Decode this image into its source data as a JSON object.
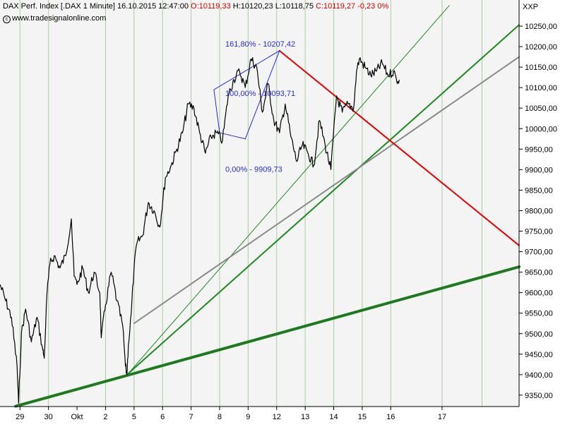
{
  "header": {
    "instrument": "DAX Perf. Index [.DAX",
    "interval": "1 Minute]",
    "datetime": "16.10.2015 12:47:00",
    "open": "O:10119,33",
    "high": "H:10120,23",
    "low": "L:10118,75",
    "close": "C:10119,27",
    "change": "-0,23",
    "change_pct": "0%",
    "source": "www.tradesignalonline.com",
    "symbol": "XXP"
  },
  "colors": {
    "background": "#f4f4f4",
    "grid": "#a9cfa0",
    "price": "#000000",
    "fib": "#2a2ad8",
    "red": "#e00000",
    "thick_green": "#1e7a1e",
    "green": "#1c8c1c",
    "gray": "#8a8a8a"
  },
  "chart_data": {
    "type": "line",
    "title": "DAX Perf. Index [.DAX 1 Minute]",
    "ylabel": "",
    "xlabel": "",
    "ylim": [
      9300,
      10300
    ],
    "grid": true,
    "y_ticks": [
      "10250,00",
      "10200,00",
      "10150,00",
      "10100,00",
      "10050,00",
      "10000,00",
      "9950,00",
      "9900,00",
      "9850,00",
      "9800,00",
      "9750,00",
      "9700,00",
      "9650,00",
      "9600,00",
      "9550,00",
      "9500,00",
      "9450,00",
      "9400,00",
      "9350,00"
    ],
    "y_tick_values": [
      10250,
      10200,
      10150,
      10100,
      10050,
      10000,
      9950,
      9900,
      9850,
      9800,
      9750,
      9700,
      9650,
      9600,
      9550,
      9500,
      9450,
      9400,
      9350
    ],
    "x_labels": [
      "29",
      "30",
      "Okt",
      "2",
      "5",
      "6",
      "7",
      "8",
      "9",
      "12",
      "13",
      "14",
      "15",
      "16",
      "17"
    ],
    "x_label_index": [
      1.4,
      3.4,
      5.4,
      7.4,
      9.4,
      11.4,
      13.4,
      15.4,
      17.4,
      19.4,
      21.4,
      23.4,
      25.4,
      27.4,
      31.0
    ],
    "x_grid_index": [
      1.4,
      3.4,
      7.4,
      9.4,
      11.4,
      13.4,
      15.4,
      17.4,
      19.4,
      21.4,
      23.4,
      25.4,
      27.4,
      31.0,
      33.8
    ],
    "x_range": [
      0,
      36.4
    ],
    "series": [
      {
        "name": "",
        "type": "price",
        "x": [
          0,
          0.4,
          0.8,
          1.2,
          1.3,
          1.5,
          1.8,
          2.2,
          2.6,
          3.0,
          3.1,
          3.3,
          3.5,
          3.8,
          4.2,
          4.6,
          5.0,
          5.2,
          5.4,
          5.8,
          6.2,
          6.6,
          7.0,
          7.1,
          7.4,
          7.8,
          8.2,
          8.6,
          8.8,
          8.9,
          9.0,
          9.2,
          9.4,
          9.6,
          10.0,
          10.4,
          10.8,
          11.2,
          11.6,
          12.0,
          12.4,
          12.8,
          13.2,
          13.6,
          14.0,
          14.4,
          14.8,
          15.2,
          15.6,
          16.0,
          16.4,
          16.8,
          17.2,
          17.6,
          18.0,
          18.4,
          18.8,
          19.2,
          19.6,
          20.0,
          20.4,
          20.8,
          21.2,
          21.6,
          22.0,
          22.4,
          22.8,
          23.2,
          23.6,
          24.0,
          24.4,
          24.8,
          25.0,
          25.2,
          25.6,
          26.0,
          26.4,
          26.8,
          27.2,
          27.6,
          27.8,
          28.0
        ],
        "values": [
          9620,
          9580,
          9540,
          9420,
          9330,
          9500,
          9560,
          9480,
          9540,
          9460,
          9440,
          9600,
          9670,
          9690,
          9660,
          9690,
          9780,
          9640,
          9620,
          9660,
          9600,
          9650,
          9600,
          9490,
          9570,
          9650,
          9580,
          9520,
          9420,
          9400,
          9470,
          9550,
          9660,
          9720,
          9740,
          9820,
          9800,
          9760,
          9880,
          9910,
          9950,
          9990,
          10060,
          10050,
          9990,
          9940,
          9980,
          9990,
          9970,
          10080,
          10120,
          10140,
          10100,
          10170,
          10150,
          10040,
          10110,
          10020,
          9990,
          10060,
          9980,
          9920,
          9960,
          9940,
          9910,
          10020,
          9960,
          9900,
          10080,
          10040,
          10060,
          10050,
          10140,
          10170,
          10150,
          10130,
          10140,
          10160,
          10130,
          10140,
          10120,
          10119
        ],
        "color": "#000000"
      }
    ],
    "annotations": [
      {
        "label": "161,80% - 10207,42",
        "x": 15.8,
        "y": 10200
      },
      {
        "label": "100,00% - 10093,71",
        "x": 15.8,
        "y": 10080
      },
      {
        "label": "0,00% - 9909,73",
        "x": 15.8,
        "y": 9895
      }
    ],
    "trendlines": [
      {
        "name": "thick-green",
        "x1": 1.1,
        "y1": 9323,
        "x2": 36.4,
        "y2": 9663,
        "color": "#1e7a1e",
        "width": 4
      },
      {
        "name": "green-main",
        "x1": 9.0,
        "y1": 9403,
        "x2": 36.4,
        "y2": 10253,
        "color": "#1c8c1c",
        "width": 2
      },
      {
        "name": "green-thin",
        "x1": 9.0,
        "y1": 9403,
        "x2": 31.5,
        "y2": 10300,
        "color": "#1c8c1c",
        "width": 1
      },
      {
        "name": "gray",
        "x1": 9.4,
        "y1": 9525,
        "x2": 36.4,
        "y2": 10175,
        "color": "#8a8a8a",
        "width": 2
      },
      {
        "name": "red",
        "x1": 19.6,
        "y1": 10190,
        "x2": 36.4,
        "y2": 9715,
        "color": "#e00000",
        "width": 2
      },
      {
        "name": "fib-1",
        "x1": 15.0,
        "y1": 10095,
        "x2": 19.6,
        "y2": 10190,
        "color": "#2a2ad8",
        "width": 1
      },
      {
        "name": "fib-2",
        "x1": 19.6,
        "y1": 10190,
        "x2": 17.2,
        "y2": 9975,
        "color": "#2a2ad8",
        "width": 1
      },
      {
        "name": "fib-3",
        "x1": 15.0,
        "y1": 10095,
        "x2": 15.4,
        "y2": 9990,
        "color": "#2a2ad8",
        "width": 1
      },
      {
        "name": "fib-4",
        "x1": 15.4,
        "y1": 9990,
        "x2": 17.2,
        "y2": 9975,
        "color": "#2a2ad8",
        "width": 1
      }
    ]
  }
}
